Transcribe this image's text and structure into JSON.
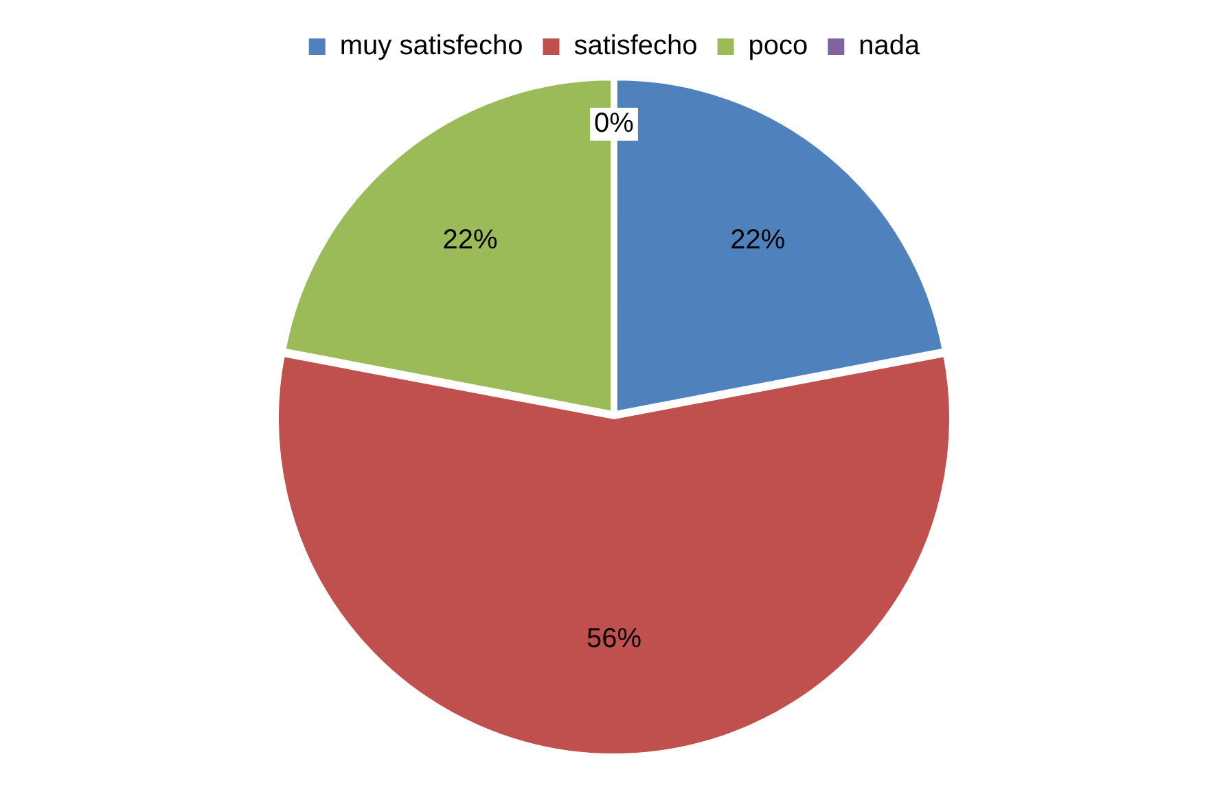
{
  "chart_data": {
    "type": "pie",
    "categories": [
      "muy satisfecho",
      "satisfecho",
      "poco",
      "nada"
    ],
    "values": [
      22,
      56,
      22,
      0
    ],
    "colors": [
      "#4f81bd",
      "#c0504d",
      "#9bbb59",
      "#8064a2"
    ],
    "value_labels": [
      "22%",
      "56%",
      "22%",
      "0%"
    ],
    "legend": "top"
  }
}
